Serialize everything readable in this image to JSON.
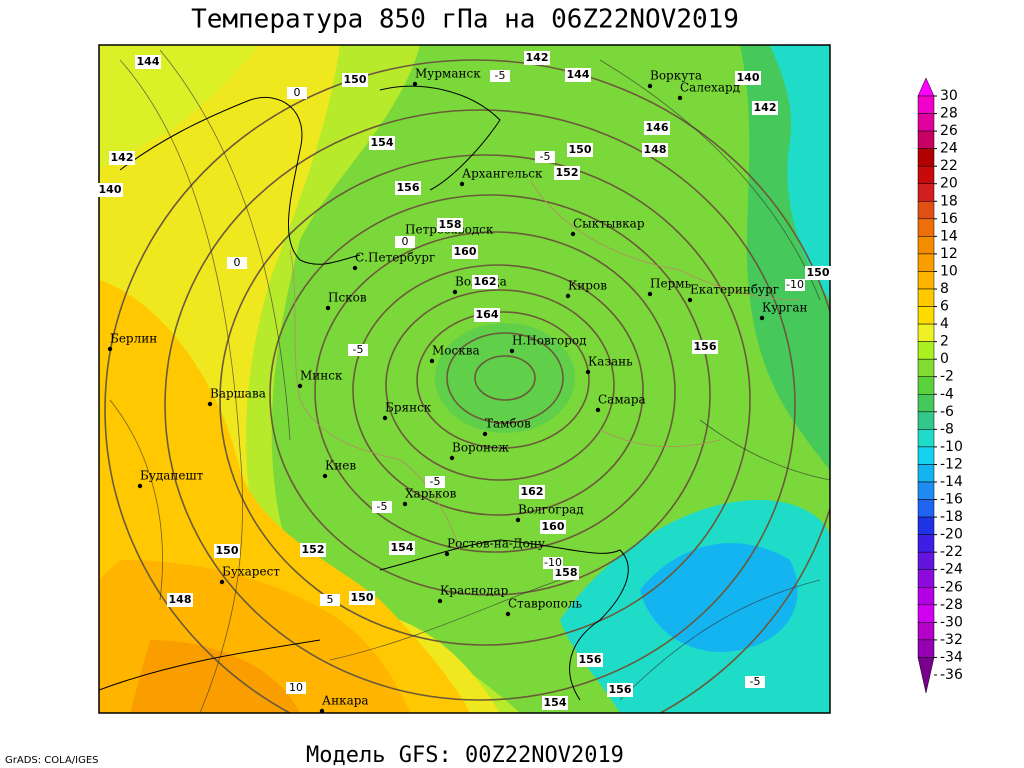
{
  "title": "Температура 850 гПа на 06Z22NOV2019",
  "footer": "Модель GFS: 00Z22NOV2019",
  "credit": "GrADS: COLA/IGES",
  "colorbar": {
    "ticks": [
      30,
      28,
      26,
      24,
      22,
      20,
      18,
      16,
      14,
      12,
      10,
      8,
      6,
      4,
      2,
      0,
      -2,
      -4,
      -6,
      -8,
      -10,
      -12,
      -14,
      -16,
      -18,
      -20,
      -22,
      -24,
      -26,
      -28,
      -30,
      -32,
      -34,
      -36
    ],
    "colors": [
      "#ff00ff",
      "#f000c8",
      "#e0009c",
      "#c80064",
      "#b40000",
      "#c80a0a",
      "#d21e1e",
      "#e05014",
      "#f06e0a",
      "#f58c00",
      "#fa9e00",
      "#ffb400",
      "#ffc800",
      "#ffdc00",
      "#f0f028",
      "#aaf01e",
      "#82dc32",
      "#5ad23c",
      "#46c85a",
      "#32c88c",
      "#1edcc8",
      "#14d2f0",
      "#14b4f0",
      "#1e8cf0",
      "#1e64f0",
      "#1e32e6",
      "#3c1ee6",
      "#6414dc",
      "#8c0adc",
      "#b400e6",
      "#d200f0",
      "#b400c8",
      "#9600b4",
      "#78008c"
    ]
  },
  "cities": [
    "Мурманск",
    "Воркута",
    "Салехард",
    "Архангельск",
    "Петрозаводск",
    "Сыктывкар",
    "С.Петербург",
    "Вологда",
    "Киров",
    "Пермь",
    "Екатеринбург",
    "Курган",
    "Псков",
    "Берлин",
    "Москва",
    "Н.Новгород",
    "Казань",
    "Минск",
    "Варшава",
    "Самара",
    "Брянск",
    "Тамбов",
    "Киев",
    "Воронеж",
    "Будапешт",
    "Харьков",
    "Волгоград",
    "Ростов-на-Дону",
    "Бухарест",
    "Краснодар",
    "Ставрополь",
    "Анкара"
  ],
  "contour_labels": [
    "144",
    "150",
    "142",
    "144",
    "140",
    "142",
    "146",
    "148",
    "150",
    "152",
    "154",
    "156",
    "158",
    "160",
    "162",
    "164",
    "156",
    "150",
    "142",
    "140",
    "162",
    "160",
    "158",
    "156",
    "156",
    "154",
    "154",
    "152",
    "150",
    "148",
    "150"
  ],
  "isotherm_labels": [
    "-5",
    "-5",
    "-5",
    "-5",
    "-5",
    "-10",
    "-10",
    "-5",
    "0",
    "0",
    "0",
    "10",
    "5"
  ]
}
